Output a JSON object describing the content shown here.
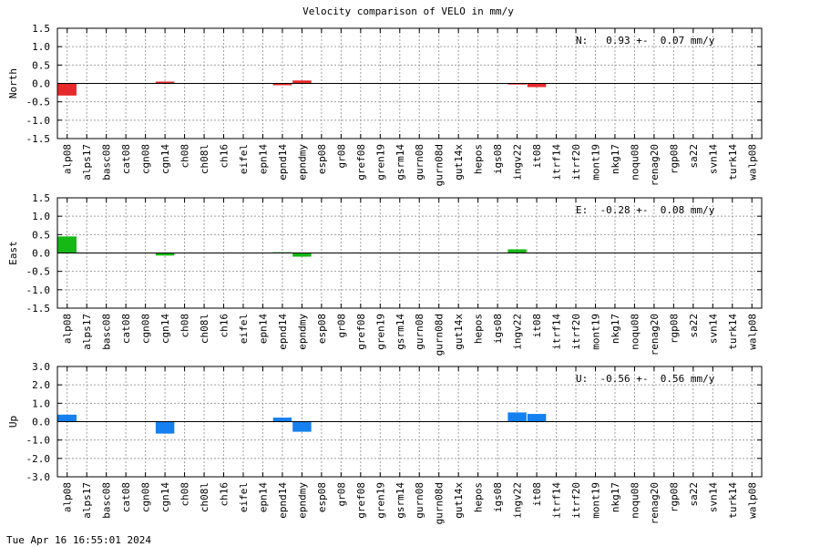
{
  "title": "Velocity comparison of VELO in mm/y",
  "footer": "Tue Apr 16 16:55:01 2024",
  "colors": {
    "north": "#e8292b",
    "east": "#15b815",
    "up": "#1580f0",
    "grid": "#a0a0a0",
    "axis": "#000000"
  },
  "chart_data": [
    {
      "type": "bar",
      "ylabel": "North",
      "ylim": [
        -1.5,
        1.5
      ],
      "yticks": [
        "1.5",
        "1.0",
        "0.5",
        "0.0",
        "-0.5",
        "-1.0",
        "-1.5"
      ],
      "categories": [
        "alp08",
        "alps17",
        "basc08",
        "cat08",
        "cgn08",
        "cgn14",
        "ch08",
        "ch08l",
        "ch16",
        "eifel",
        "epn14",
        "epnd14",
        "epndmy",
        "esp08",
        "gr08",
        "gref08",
        "gren19",
        "gsrm14",
        "gurn08",
        "gurn08d",
        "gut14x",
        "hepos",
        "igs08",
        "ingv22",
        "it08",
        "itrf14",
        "itrf20",
        "mont19",
        "nkg17",
        "noqu08",
        "renag20",
        "rgp08",
        "sa22",
        "svn14",
        "turk14",
        "walp08"
      ],
      "values": [
        -0.33,
        0,
        0,
        0,
        0,
        0.05,
        0,
        0,
        0,
        0,
        0,
        -0.05,
        0.08,
        0,
        0,
        0,
        0,
        0,
        0,
        0,
        0,
        0,
        0,
        -0.03,
        -0.1,
        0,
        0,
        0,
        0,
        0,
        0,
        0,
        0,
        0,
        0,
        0
      ],
      "annotation": "N:   0.93 +-  0.07 mm/y",
      "color_key": "north",
      "grid": true
    },
    {
      "type": "bar",
      "ylabel": "East",
      "ylim": [
        -1.5,
        1.5
      ],
      "yticks": [
        "1.5",
        "1.0",
        "0.5",
        "0.0",
        "-0.5",
        "-1.0",
        "-1.5"
      ],
      "categories": [
        "alp08",
        "alps17",
        "basc08",
        "cat08",
        "cgn08",
        "cgn14",
        "ch08",
        "ch08l",
        "ch16",
        "eifel",
        "epn14",
        "epnd14",
        "epndmy",
        "esp08",
        "gr08",
        "gref08",
        "gren19",
        "gsrm14",
        "gurn08",
        "gurn08d",
        "gut14x",
        "hepos",
        "igs08",
        "ingv22",
        "it08",
        "itrf14",
        "itrf20",
        "mont19",
        "nkg17",
        "noqu08",
        "renag20",
        "rgp08",
        "sa22",
        "svn14",
        "turk14",
        "walp08"
      ],
      "values": [
        0.45,
        0,
        0,
        0,
        0,
        -0.07,
        0,
        0,
        0,
        0,
        0,
        0.02,
        -0.1,
        0,
        0,
        0,
        0,
        0,
        0,
        0,
        0,
        0,
        0,
        0.1,
        0,
        0,
        0,
        0,
        0,
        0,
        0,
        0,
        0,
        0,
        0,
        0
      ],
      "annotation": "E:  -0.28 +-  0.08 mm/y",
      "color_key": "east",
      "grid": true
    },
    {
      "type": "bar",
      "ylabel": "Up",
      "ylim": [
        -3.0,
        3.0
      ],
      "yticks": [
        "3.0",
        "2.0",
        "1.0",
        "0.0",
        "-1.0",
        "-2.0",
        "-3.0"
      ],
      "categories": [
        "alp08",
        "alps17",
        "basc08",
        "cat08",
        "cgn08",
        "cgn14",
        "ch08",
        "ch08l",
        "ch16",
        "eifel",
        "epn14",
        "epnd14",
        "epndmy",
        "esp08",
        "gr08",
        "gref08",
        "gren19",
        "gsrm14",
        "gurn08",
        "gurn08d",
        "gut14x",
        "hepos",
        "igs08",
        "ingv22",
        "it08",
        "itrf14",
        "itrf20",
        "mont19",
        "nkg17",
        "noqu08",
        "renag20",
        "rgp08",
        "sa22",
        "svn14",
        "turk14",
        "walp08"
      ],
      "values": [
        0.38,
        0,
        0,
        0,
        0,
        -0.65,
        0,
        0,
        0,
        0,
        0,
        0.22,
        -0.55,
        0,
        0,
        0,
        0,
        0,
        0,
        0,
        0,
        0,
        0,
        0.5,
        0.42,
        0,
        0,
        0,
        0,
        0,
        0,
        0,
        0,
        0,
        0,
        0
      ],
      "annotation": "U:  -0.56 +-  0.56 mm/y",
      "color_key": "up",
      "grid": true
    }
  ]
}
